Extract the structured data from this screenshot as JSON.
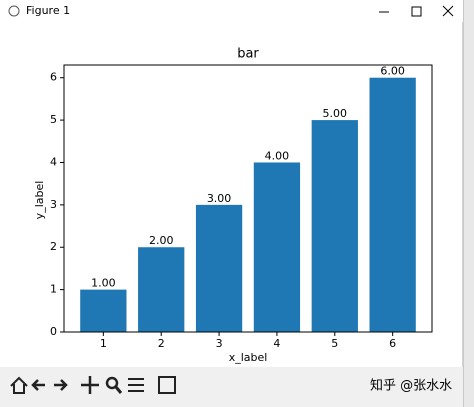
{
  "window": {
    "title": "Figure 1",
    "watermark": "知乎 @张水水"
  },
  "chart_data": {
    "type": "bar",
    "title": "bar",
    "x_label": "x_label",
    "y_label": "y_label",
    "x": [
      1,
      2,
      3,
      4,
      5,
      6
    ],
    "values": [
      1,
      2,
      3,
      4,
      5,
      6
    ],
    "value_labels": [
      "1.00",
      "2.00",
      "3.00",
      "4.00",
      "5.00",
      "6.00"
    ],
    "color": "#1f77b4",
    "bar_width": 0.8,
    "xlim": [
      0.32,
      6.68
    ],
    "xticks": [
      1,
      2,
      3,
      4,
      5,
      6
    ],
    "ylim": [
      0,
      6.3
    ],
    "yticks": [
      0,
      1,
      2,
      3,
      4,
      5,
      6
    ],
    "grid": false
  }
}
